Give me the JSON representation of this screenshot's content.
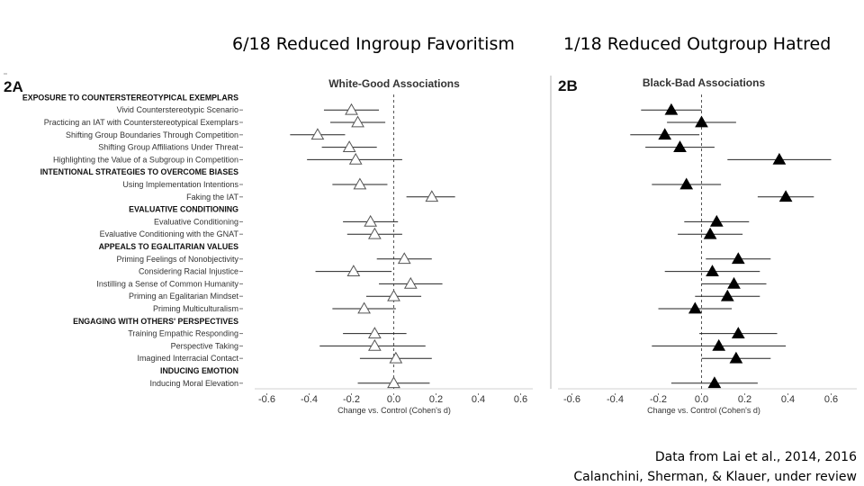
{
  "slide": {
    "heading_left": "6/18 Reduced Ingroup Favoritism",
    "heading_right": "1/18 Reduced Outgroup Hatred",
    "credit_line1": "Data from Lai et al., 2014, 2016",
    "credit_line2": "Calanchini, Sherman, & Klauer, under review"
  },
  "chart_data": [
    {
      "type": "scatter",
      "panel": "2A",
      "title": "White-Good Associations",
      "xlabel": "Change vs. Control (Cohen's d)",
      "xlim": [
        -0.7,
        0.7
      ],
      "xticks": [
        -0.6,
        -0.4,
        -0.2,
        0.0,
        0.2,
        0.4,
        0.6
      ],
      "reference_line": 0.0,
      "marker": "open-triangle",
      "rows": [
        {
          "label": "EXPOSURE TO COUNTERSTEREOTYPICAL EXEMPLARS",
          "header": true
        },
        {
          "label": "Vivid Counterstereotypic Scenario",
          "d": -0.2,
          "lo": -0.33,
          "hi": -0.07
        },
        {
          "label": "Practicing an IAT with Counterstereotypical Exemplars",
          "d": -0.17,
          "lo": -0.3,
          "hi": -0.04
        },
        {
          "label": "Shifting Group Boundaries Through Competition",
          "d": -0.36,
          "lo": -0.49,
          "hi": -0.23
        },
        {
          "label": "Shifting Group Affiliations Under Threat",
          "d": -0.21,
          "lo": -0.34,
          "hi": -0.08
        },
        {
          "label": "Highlighting the Value of a Subgroup in Competition",
          "d": -0.18,
          "lo": -0.41,
          "hi": 0.04
        },
        {
          "label": "INTENTIONAL STRATEGIES TO OVERCOME BIASES",
          "header": true
        },
        {
          "label": "Using Implementation Intentions",
          "d": -0.16,
          "lo": -0.29,
          "hi": -0.03
        },
        {
          "label": "Faking the IAT",
          "d": 0.18,
          "lo": 0.06,
          "hi": 0.29
        },
        {
          "label": "EVALUATIVE CONDITIONING",
          "header": true
        },
        {
          "label": "Evaluative Conditioning",
          "d": -0.11,
          "lo": -0.24,
          "hi": 0.02
        },
        {
          "label": "Evaluative Conditioning with the GNAT",
          "d": -0.09,
          "lo": -0.22,
          "hi": 0.04
        },
        {
          "label": "APPEALS TO EGALITARIAN VALUES",
          "header": true
        },
        {
          "label": "Priming Feelings of Nonobjectivity",
          "d": 0.05,
          "lo": -0.08,
          "hi": 0.18
        },
        {
          "label": "Considering Racial Injustice",
          "d": -0.19,
          "lo": -0.37,
          "hi": -0.01
        },
        {
          "label": "Instilling a Sense of Common Humanity",
          "d": 0.08,
          "lo": -0.07,
          "hi": 0.23
        },
        {
          "label": "Priming an Egalitarian Mindset",
          "d": 0.0,
          "lo": -0.13,
          "hi": 0.13
        },
        {
          "label": "Priming Multiculturalism",
          "d": -0.14,
          "lo": -0.29,
          "hi": 0.01
        },
        {
          "label": "ENGAGING WITH OTHERS' PERSPECTIVES",
          "header": true
        },
        {
          "label": "Training Empathic Responding",
          "d": -0.09,
          "lo": -0.24,
          "hi": 0.06
        },
        {
          "label": "Perspective Taking",
          "d": -0.09,
          "lo": -0.35,
          "hi": 0.15
        },
        {
          "label": "Imagined Interracial Contact",
          "d": 0.01,
          "lo": -0.16,
          "hi": 0.18
        },
        {
          "label": "INDUCING EMOTION",
          "header": true
        },
        {
          "label": "Inducing Moral Elevation",
          "d": 0.0,
          "lo": -0.17,
          "hi": 0.17
        }
      ]
    },
    {
      "type": "scatter",
      "panel": "2B",
      "title": "Black-Bad Associations",
      "xlabel": "Change vs. Control (Cohen's d)",
      "xlim": [
        -0.7,
        0.7
      ],
      "xticks": [
        -0.6,
        -0.4,
        -0.2,
        0.0,
        0.2,
        0.4,
        0.6
      ],
      "reference_line": 0.0,
      "marker": "filled-triangle",
      "values": [
        {
          "d": -0.14,
          "lo": -0.28,
          "hi": 0.0
        },
        {
          "d": 0.0,
          "lo": -0.16,
          "hi": 0.16
        },
        {
          "d": -0.17,
          "lo": -0.33,
          "hi": -0.01
        },
        {
          "d": -0.1,
          "lo": -0.26,
          "hi": 0.06
        },
        {
          "d": 0.36,
          "lo": 0.12,
          "hi": 0.6
        },
        {
          "d": -0.07,
          "lo": -0.23,
          "hi": 0.09
        },
        {
          "d": 0.39,
          "lo": 0.26,
          "hi": 0.52
        },
        {
          "d": 0.07,
          "lo": -0.08,
          "hi": 0.22
        },
        {
          "d": 0.04,
          "lo": -0.11,
          "hi": 0.19
        },
        {
          "d": 0.17,
          "lo": 0.02,
          "hi": 0.32
        },
        {
          "d": 0.05,
          "lo": -0.17,
          "hi": 0.27
        },
        {
          "d": 0.15,
          "lo": 0.0,
          "hi": 0.3
        },
        {
          "d": 0.12,
          "lo": -0.03,
          "hi": 0.27
        },
        {
          "d": -0.03,
          "lo": -0.2,
          "hi": 0.14
        },
        {
          "d": 0.17,
          "lo": -0.01,
          "hi": 0.35
        },
        {
          "d": 0.08,
          "lo": -0.23,
          "hi": 0.39
        },
        {
          "d": 0.16,
          "lo": 0.0,
          "hi": 0.32
        },
        {
          "d": 0.06,
          "lo": -0.14,
          "hi": 0.26
        }
      ]
    }
  ]
}
